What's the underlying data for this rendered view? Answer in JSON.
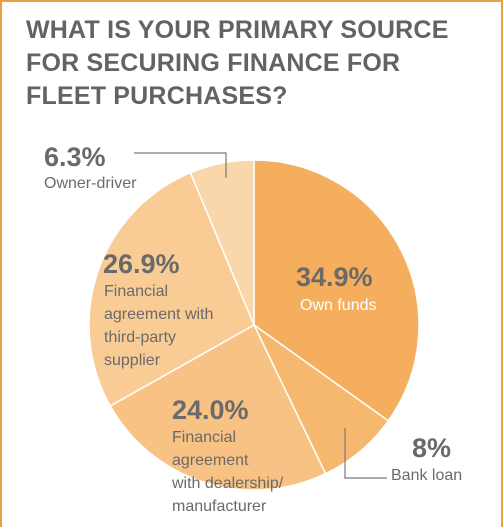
{
  "chart_data": {
    "type": "pie",
    "title": "WHAT IS YOUR PRIMARY SOURCE FOR SECURING FINANCE FOR FLEET PURCHASES?",
    "slices": [
      {
        "key": "own",
        "percent_label": "34.9%",
        "value": 34.9,
        "label_lines": [
          "Own funds"
        ],
        "color": "#f5ae5e"
      },
      {
        "key": "bank",
        "percent_label": "8%",
        "value": 8.0,
        "label_lines": [
          "Bank loan"
        ],
        "color": "#f6b86f"
      },
      {
        "key": "dealer",
        "percent_label": "24.0%",
        "value": 24.0,
        "label_lines": [
          "Financial",
          "agreement",
          "with dealership/",
          "manufacturer"
        ],
        "color": "#f7c284"
      },
      {
        "key": "thirdparty",
        "percent_label": "26.9%",
        "value": 26.9,
        "label_lines": [
          "Financial",
          "agreement with",
          "third-party",
          "supplier"
        ],
        "color": "#f9cc95"
      },
      {
        "key": "owner",
        "percent_label": "6.3%",
        "value": 6.3,
        "label_lines": [
          "Owner-driver"
        ],
        "color": "#fad7ab"
      }
    ],
    "colors": {
      "frame": "#e8a043",
      "text": "#636363",
      "leader": "#7a7a7a"
    }
  }
}
